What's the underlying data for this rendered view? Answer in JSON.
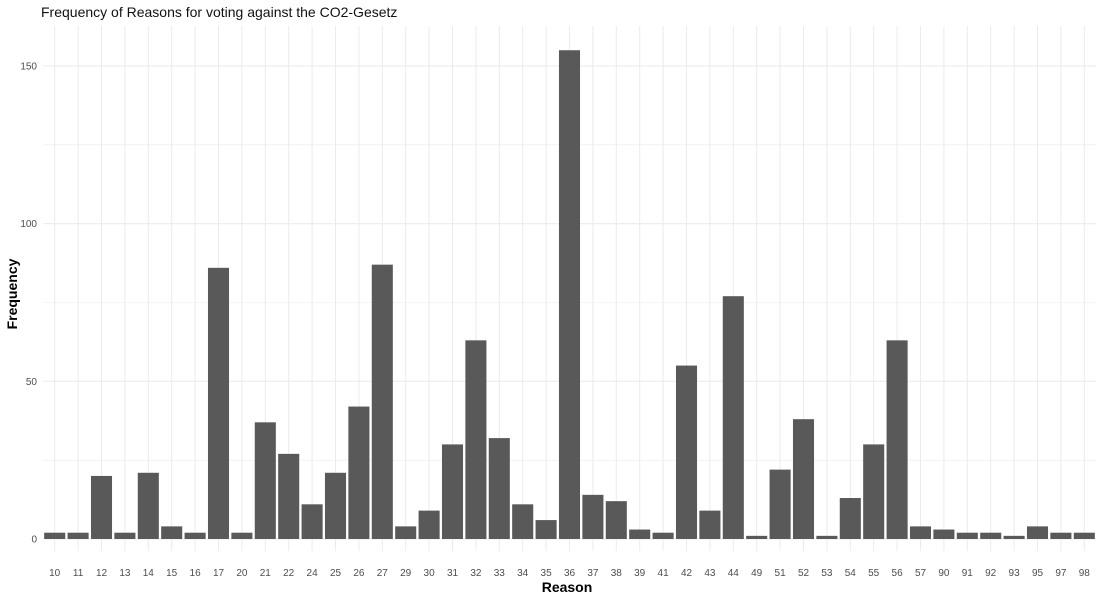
{
  "chart_data": {
    "type": "bar",
    "title": "Frequency of Reasons for voting against the CO2-Gesetz",
    "xlabel": "Reason",
    "ylabel": "Frequency",
    "ylim": [
      0,
      155
    ],
    "y_ticks": [
      0,
      50,
      100,
      150
    ],
    "grid": true,
    "categories": [
      "10",
      "11",
      "12",
      "13",
      "14",
      "15",
      "16",
      "17",
      "20",
      "21",
      "22",
      "24",
      "25",
      "26",
      "27",
      "29",
      "30",
      "31",
      "32",
      "33",
      "34",
      "35",
      "36",
      "37",
      "38",
      "39",
      "41",
      "42",
      "43",
      "44",
      "49",
      "51",
      "52",
      "53",
      "54",
      "55",
      "56",
      "57",
      "90",
      "91",
      "92",
      "93",
      "95",
      "97",
      "98"
    ],
    "values": [
      2,
      2,
      20,
      2,
      21,
      4,
      2,
      86,
      2,
      37,
      27,
      11,
      21,
      42,
      87,
      4,
      9,
      30,
      63,
      32,
      11,
      6,
      155,
      14,
      12,
      3,
      2,
      55,
      9,
      77,
      1,
      22,
      38,
      1,
      13,
      30,
      63,
      4,
      3,
      2,
      2,
      1,
      4,
      2,
      2
    ],
    "colors": {
      "bar": "#595959",
      "grid": "#ebebeb",
      "background": "#ffffff"
    }
  }
}
